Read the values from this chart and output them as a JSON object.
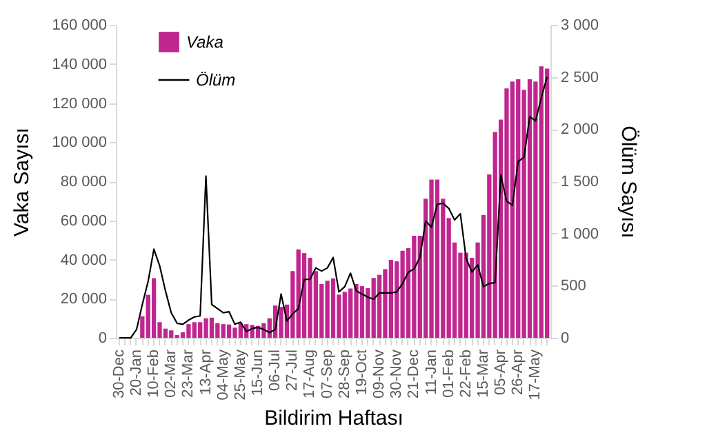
{
  "chart_data": {
    "type": "bar",
    "xlabel": "Bildirim Haftası",
    "ylabel": "Vaka Sayısı",
    "y2label": "Ölüm Sayısı",
    "categories": [
      "30-Dec",
      null,
      null,
      "20-Jan",
      null,
      null,
      "10-Feb",
      null,
      null,
      "02-Mar",
      null,
      null,
      "23-Mar",
      null,
      null,
      "13-Apr",
      null,
      null,
      "04-May",
      null,
      null,
      "25-May",
      null,
      null,
      "15-Jun",
      null,
      null,
      "06-Jul",
      null,
      null,
      "27-Jul",
      null,
      null,
      "17-Aug",
      null,
      null,
      "07-Sep",
      null,
      null,
      "28-Sep",
      null,
      null,
      "19-Oct",
      null,
      null,
      "09-Nov",
      null,
      null,
      "30-Nov",
      null,
      null,
      "21-Dec",
      null,
      null,
      "11-Jan",
      null,
      null,
      "01-Feb",
      null,
      null,
      "22-Feb",
      null,
      null,
      "15-Mar",
      null,
      null,
      "05-Apr",
      null,
      null,
      "26-Apr",
      null,
      null,
      "17-May",
      null,
      null
    ],
    "series": [
      {
        "name": "Vaka",
        "color": "#c0268f",
        "values": [
          0,
          0,
          0,
          0,
          11000,
          22000,
          30500,
          8000,
          4700,
          3800,
          1400,
          2800,
          7000,
          8000,
          8000,
          10000,
          10300,
          7500,
          7000,
          6800,
          5200,
          7500,
          7000,
          6600,
          6100,
          7500,
          10000,
          16500,
          15800,
          17000,
          34100,
          45200,
          43300,
          40900,
          34100,
          27500,
          29200,
          30400,
          22100,
          23500,
          25200,
          27500,
          26400,
          25400,
          30600,
          32200,
          35100,
          39800,
          39100,
          44500,
          45900,
          52200,
          52200,
          71100,
          80900,
          80900,
          71100,
          61200,
          48700,
          43500,
          43500,
          40900,
          48700,
          62800,
          83500,
          105200,
          111500,
          127500,
          131000,
          132200,
          126800,
          132200,
          131000,
          138800,
          137600
        ]
      },
      {
        "name": "Ölüm",
        "type": "line",
        "axis": "y2",
        "color": "#000000",
        "values": [
          0,
          0,
          0,
          80,
          320,
          540,
          850,
          690,
          450,
          240,
          140,
          130,
          170,
          200,
          210,
          1550,
          320,
          280,
          240,
          250,
          130,
          150,
          60,
          90,
          100,
          80,
          50,
          80,
          420,
          160,
          230,
          280,
          560,
          560,
          670,
          640,
          670,
          770,
          440,
          490,
          620,
          450,
          420,
          390,
          370,
          430,
          430,
          430,
          440,
          520,
          630,
          660,
          770,
          1120,
          1060,
          1280,
          1290,
          1240,
          1130,
          1190,
          760,
          630,
          700,
          490,
          520,
          530,
          1560,
          1310,
          1270,
          1690,
          1730,
          2120,
          2080,
          2300,
          2500
        ]
      }
    ],
    "ylim": [
      0,
      160000
    ],
    "yticks": [
      0,
      {
        "value": 20000,
        "label": "20 000"
      },
      {
        "value": 40000,
        "label": "40 000"
      },
      {
        "value": 60000,
        "label": "60 000"
      },
      {
        "value": 80000,
        "label": "80 000"
      },
      {
        "value": 100000,
        "label": "100 000"
      },
      {
        "value": 120000,
        "label": "120 000"
      },
      {
        "value": 140000,
        "label": "140 000"
      },
      {
        "value": 160000,
        "label": "160 000"
      }
    ],
    "y2lim": [
      0,
      3000
    ],
    "y2ticks": [
      0,
      500,
      {
        "value": 1000,
        "label": "1 000"
      },
      {
        "value": 1500,
        "label": "1 500"
      },
      {
        "value": 2000,
        "label": "2 000"
      },
      {
        "value": 2500,
        "label": "2 500"
      },
      {
        "value": 3000,
        "label": "3 000"
      }
    ],
    "grid": false,
    "legend": "top left"
  }
}
